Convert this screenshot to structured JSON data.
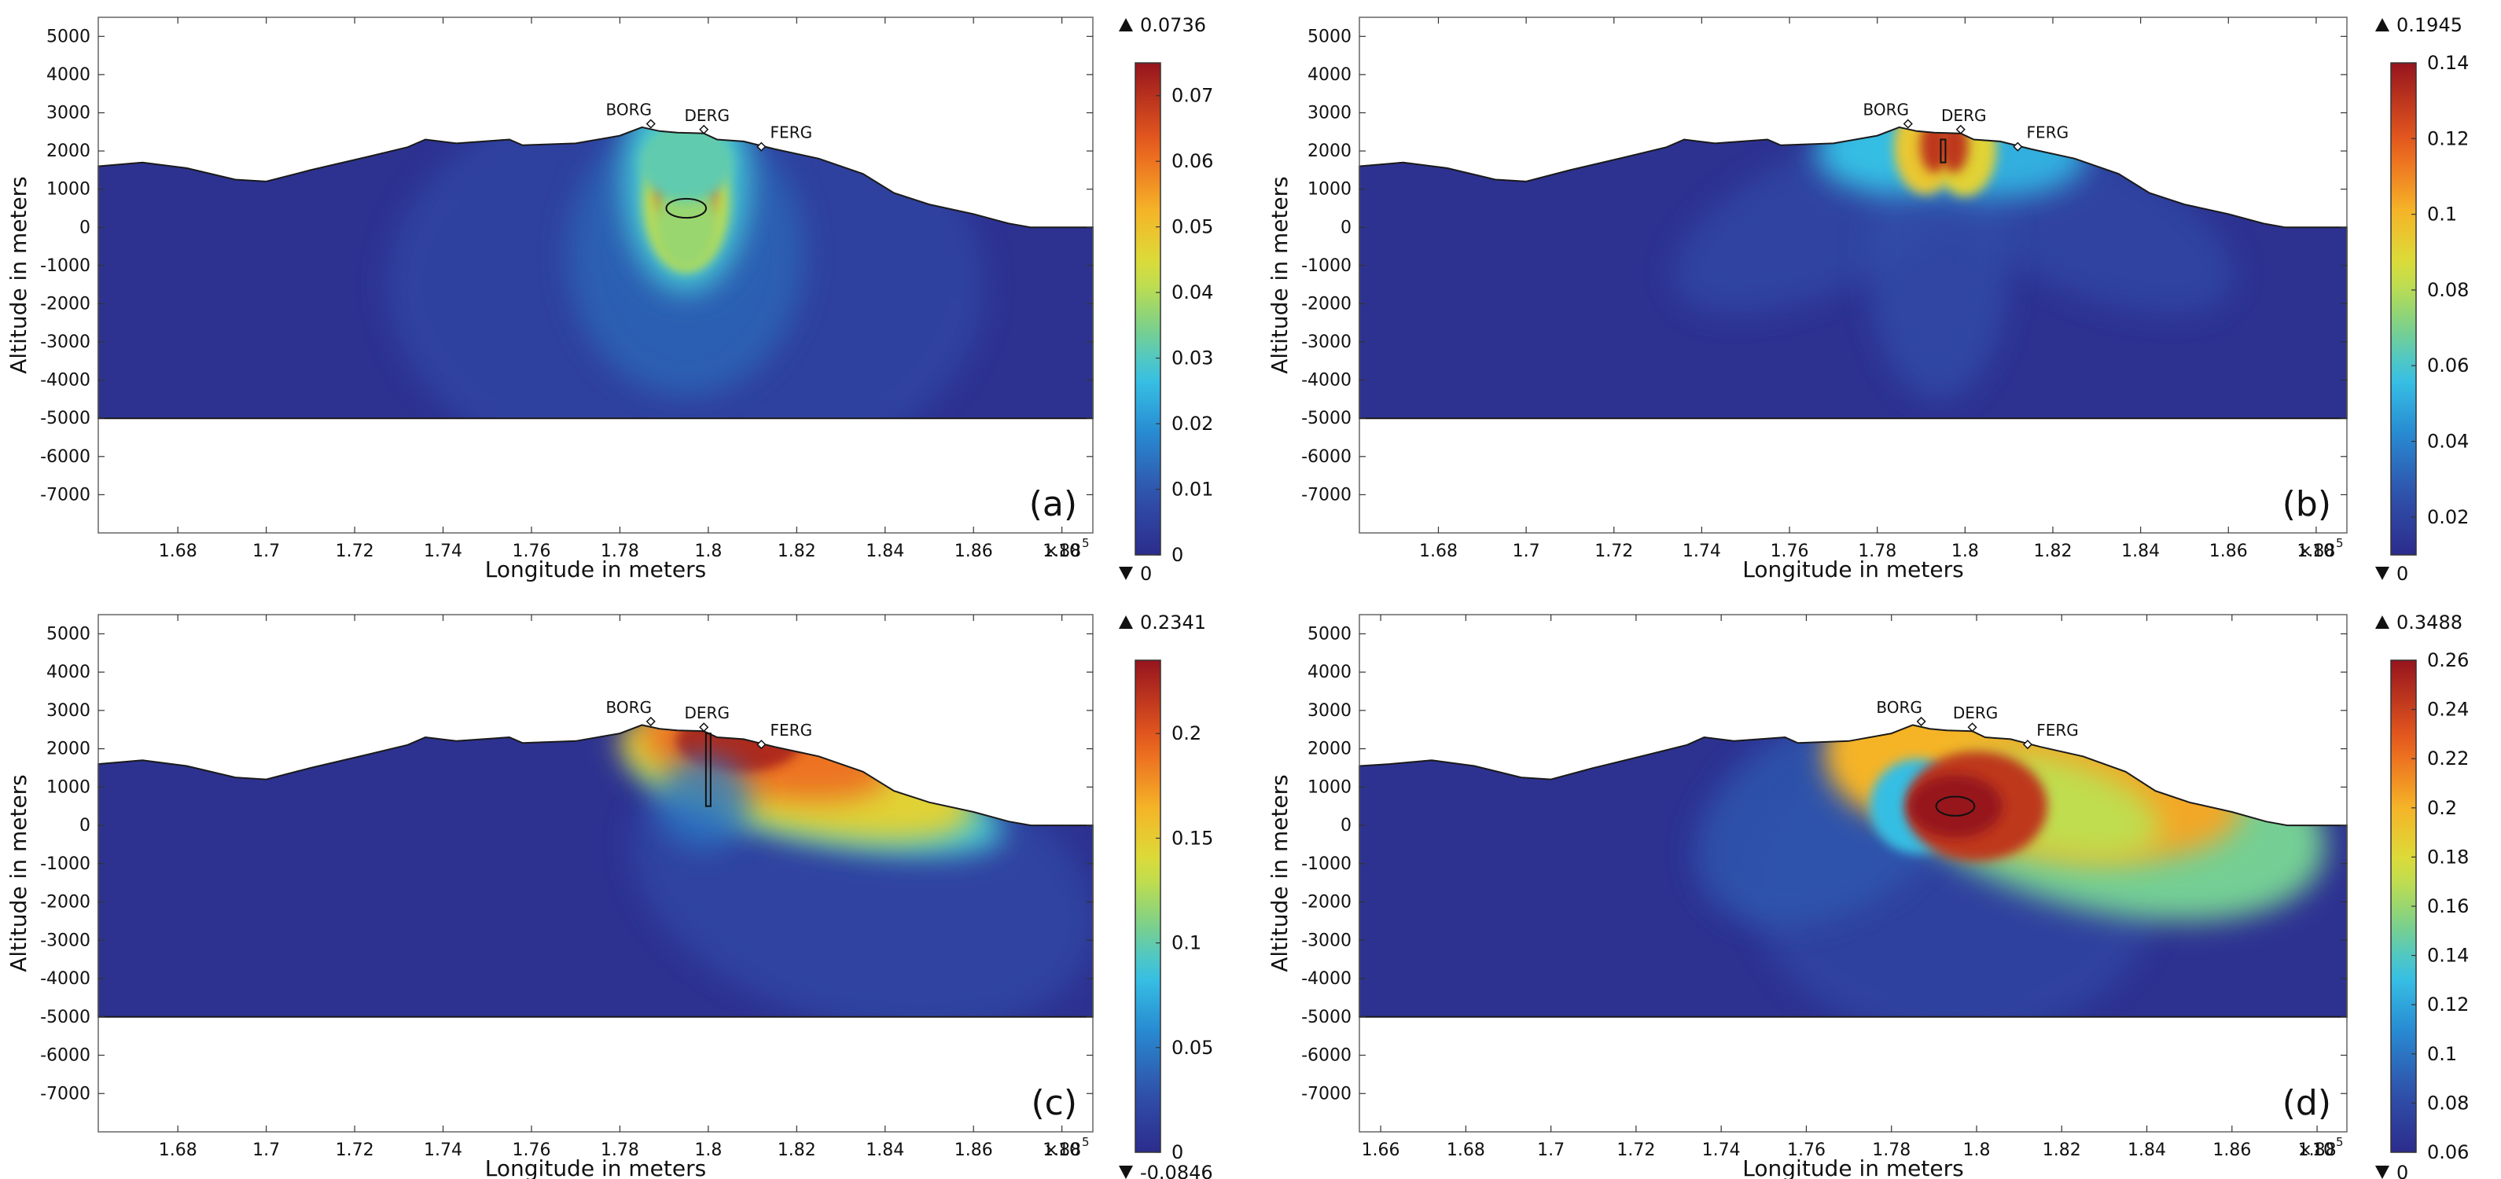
{
  "figure": {
    "xlabel": "Longitude in meters",
    "ylabel": "Altitude in meters",
    "x_multiplier": "×10",
    "x_multiplier_exp": "5",
    "stations": [
      "BORG",
      "DERG",
      "FERG"
    ]
  },
  "chart_data": [
    {
      "type": "heatmap",
      "panel_label": "(a)",
      "xlabel": "Longitude in meters",
      "ylabel": "Altitude in meters",
      "xlim": [
        166200,
        188700
      ],
      "ylim": [
        -8000,
        5500
      ],
      "x_ticks": [
        {
          "value": 168000,
          "label": "1.68"
        },
        {
          "value": 170000,
          "label": "1.7"
        },
        {
          "value": 172000,
          "label": "1.72"
        },
        {
          "value": 174000,
          "label": "1.74"
        },
        {
          "value": 176000,
          "label": "1.76"
        },
        {
          "value": 178000,
          "label": "1.78"
        },
        {
          "value": 180000,
          "label": "1.8"
        },
        {
          "value": 182000,
          "label": "1.82"
        },
        {
          "value": 184000,
          "label": "1.84"
        },
        {
          "value": 186000,
          "label": "1.86"
        },
        {
          "value": 188000,
          "label": "1.88"
        }
      ],
      "y_ticks": [
        5000,
        4000,
        3000,
        2000,
        1000,
        0,
        -1000,
        -2000,
        -3000,
        -4000,
        -5000,
        -6000,
        -7000
      ],
      "domain_bottom": -5000,
      "stations": [
        {
          "name": "BORG",
          "x": 178700,
          "y": 2650
        },
        {
          "name": "DERG",
          "x": 179900,
          "y": 2500
        },
        {
          "name": "FERG",
          "x": 181200,
          "y": 2050
        }
      ],
      "source": {
        "shape": "ellipse",
        "x": 179500,
        "y": 500,
        "rx": 450,
        "ry": 250
      },
      "colorbar": {
        "min": 0,
        "max": 0.075,
        "ticks": [
          "0",
          "0.01",
          "0.02",
          "0.03",
          "0.04",
          "0.05",
          "0.06",
          "0.07"
        ],
        "tick_values": [
          0,
          0.01,
          0.02,
          0.03,
          0.04,
          0.05,
          0.06,
          0.07
        ],
        "max_marker": "0.0736",
        "min_marker": "0"
      }
    },
    {
      "type": "heatmap",
      "panel_label": "(b)",
      "xlabel": "Longitude in meters",
      "ylabel": "Altitude in meters",
      "xlim": [
        166200,
        188700
      ],
      "ylim": [
        -8000,
        5500
      ],
      "x_ticks": [
        {
          "value": 168000,
          "label": "1.68"
        },
        {
          "value": 170000,
          "label": "1.7"
        },
        {
          "value": 172000,
          "label": "1.72"
        },
        {
          "value": 174000,
          "label": "1.74"
        },
        {
          "value": 176000,
          "label": "1.76"
        },
        {
          "value": 178000,
          "label": "1.78"
        },
        {
          "value": 180000,
          "label": "1.8"
        },
        {
          "value": 182000,
          "label": "1.82"
        },
        {
          "value": 184000,
          "label": "1.84"
        },
        {
          "value": 186000,
          "label": "1.86"
        },
        {
          "value": 188000,
          "label": "1.88"
        }
      ],
      "y_ticks": [
        5000,
        4000,
        3000,
        2000,
        1000,
        0,
        -1000,
        -2000,
        -3000,
        -4000,
        -5000,
        -6000,
        -7000
      ],
      "domain_bottom": -5000,
      "stations": [
        {
          "name": "BORG",
          "x": 178700,
          "y": 2650
        },
        {
          "name": "DERG",
          "x": 179900,
          "y": 2500
        },
        {
          "name": "FERG",
          "x": 181200,
          "y": 2050
        }
      ],
      "source": {
        "shape": "dike",
        "x": 179500,
        "y_top": 2300,
        "y_bottom": 1700
      },
      "colorbar": {
        "min": 0.01,
        "max": 0.14,
        "ticks": [
          "0.02",
          "0.04",
          "0.06",
          "0.08",
          "0.1",
          "0.12",
          "0.14"
        ],
        "tick_values": [
          0.02,
          0.04,
          0.06,
          0.08,
          0.1,
          0.12,
          0.14
        ],
        "max_marker": "0.1945",
        "min_marker": "0"
      }
    },
    {
      "type": "heatmap",
      "panel_label": "(c)",
      "xlabel": "Longitude in meters",
      "ylabel": "Altitude in meters",
      "xlim": [
        166200,
        188700
      ],
      "ylim": [
        -8000,
        5500
      ],
      "x_ticks": [
        {
          "value": 168000,
          "label": "1.68"
        },
        {
          "value": 170000,
          "label": "1.7"
        },
        {
          "value": 172000,
          "label": "1.72"
        },
        {
          "value": 174000,
          "label": "1.74"
        },
        {
          "value": 176000,
          "label": "1.76"
        },
        {
          "value": 178000,
          "label": "1.78"
        },
        {
          "value": 180000,
          "label": "1.8"
        },
        {
          "value": 182000,
          "label": "1.82"
        },
        {
          "value": 184000,
          "label": "1.84"
        },
        {
          "value": 186000,
          "label": "1.86"
        },
        {
          "value": 188000,
          "label": "1.88"
        }
      ],
      "y_ticks": [
        5000,
        4000,
        3000,
        2000,
        1000,
        0,
        -1000,
        -2000,
        -3000,
        -4000,
        -5000,
        -6000,
        -7000
      ],
      "domain_bottom": -5000,
      "stations": [
        {
          "name": "BORG",
          "x": 178700,
          "y": 2650
        },
        {
          "name": "DERG",
          "x": 179900,
          "y": 2500
        },
        {
          "name": "FERG",
          "x": 181200,
          "y": 2050
        }
      ],
      "source": {
        "shape": "dike",
        "x": 180000,
        "y_top": 2400,
        "y_bottom": 500
      },
      "colorbar": {
        "min": 0,
        "max": 0.235,
        "ticks": [
          "0",
          "0.05",
          "0.1",
          "0.15",
          "0.2"
        ],
        "tick_values": [
          0,
          0.05,
          0.1,
          0.15,
          0.2
        ],
        "max_marker": "0.2341",
        "min_marker": "-0.0846"
      }
    },
    {
      "type": "heatmap",
      "panel_label": "(d)",
      "xlabel": "Longitude in meters",
      "ylabel": "Altitude in meters",
      "xlim": [
        165500,
        188700
      ],
      "ylim": [
        -8000,
        5500
      ],
      "x_ticks": [
        {
          "value": 166000,
          "label": "1.66"
        },
        {
          "value": 168000,
          "label": "1.68"
        },
        {
          "value": 170000,
          "label": "1.7"
        },
        {
          "value": 172000,
          "label": "1.72"
        },
        {
          "value": 174000,
          "label": "1.74"
        },
        {
          "value": 176000,
          "label": "1.76"
        },
        {
          "value": 178000,
          "label": "1.78"
        },
        {
          "value": 180000,
          "label": "1.8"
        },
        {
          "value": 182000,
          "label": "1.82"
        },
        {
          "value": 184000,
          "label": "1.84"
        },
        {
          "value": 186000,
          "label": "1.86"
        },
        {
          "value": 188000,
          "label": "1.88"
        }
      ],
      "y_ticks": [
        5000,
        4000,
        3000,
        2000,
        1000,
        0,
        -1000,
        -2000,
        -3000,
        -4000,
        -5000,
        -6000,
        -7000
      ],
      "domain_bottom": -5000,
      "stations": [
        {
          "name": "BORG",
          "x": 178700,
          "y": 2650
        },
        {
          "name": "DERG",
          "x": 179900,
          "y": 2500
        },
        {
          "name": "FERG",
          "x": 181200,
          "y": 2050
        }
      ],
      "source": {
        "shape": "ellipse",
        "x": 179500,
        "y": 500,
        "rx": 450,
        "ry": 250
      },
      "colorbar": {
        "min": 0.06,
        "max": 0.26,
        "ticks": [
          "0.06",
          "0.08",
          "0.1",
          "0.12",
          "0.14",
          "0.16",
          "0.18",
          "0.2",
          "0.22",
          "0.24",
          "0.26"
        ],
        "tick_values": [
          0.06,
          0.08,
          0.1,
          0.12,
          0.14,
          0.16,
          0.18,
          0.2,
          0.22,
          0.24,
          0.26
        ],
        "max_marker": "0.3488",
        "min_marker": "0"
      }
    }
  ]
}
